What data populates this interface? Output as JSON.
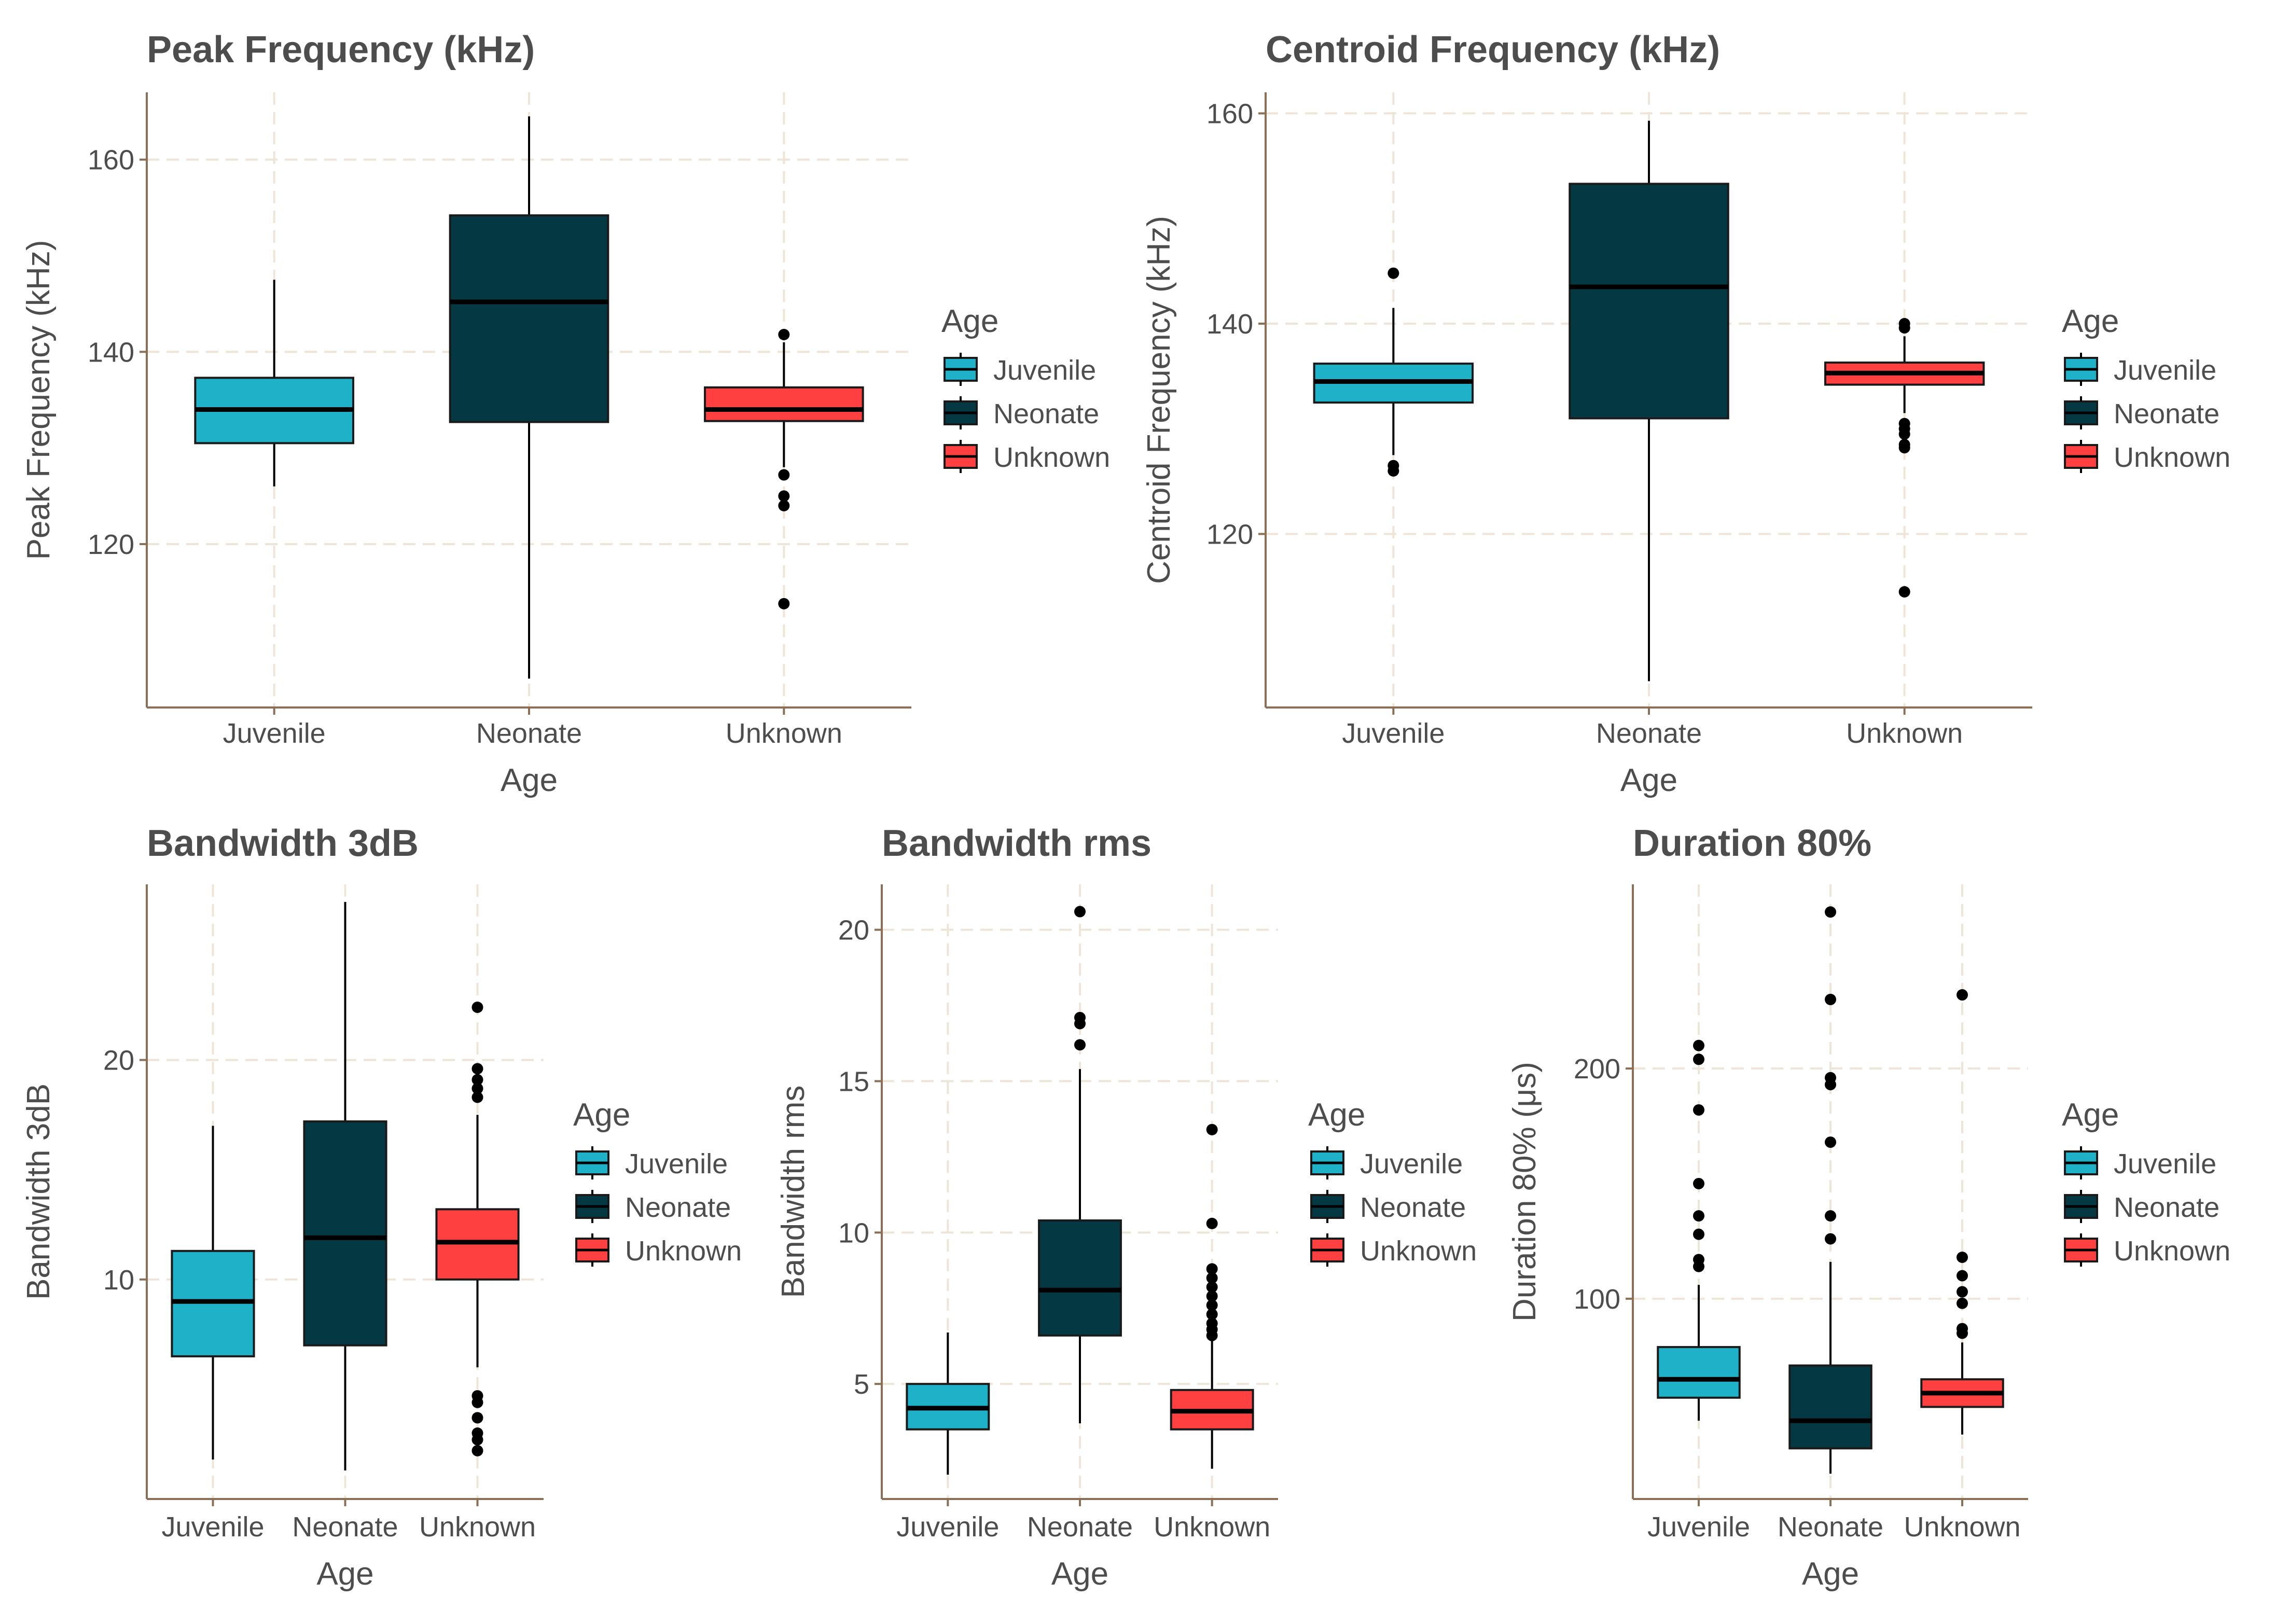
{
  "chart_data": [
    {
      "type": "boxplot",
      "title": "Peak Frequency (kHz)",
      "xlabel": "Age",
      "ylabel": "Peak Frequency (kHz)",
      "ylim": [
        103,
        167
      ],
      "yticks": [
        120,
        140,
        160
      ],
      "categories": [
        "Juvenile",
        "Neonate",
        "Unknown"
      ],
      "boxes": [
        {
          "q1": 130.5,
          "median": 134.0,
          "q3": 137.3,
          "lower": 126.0,
          "upper": 147.5,
          "outliers": []
        },
        {
          "q1": 132.7,
          "median": 145.2,
          "q3": 154.2,
          "lower": 106.0,
          "upper": 164.5,
          "outliers": []
        },
        {
          "q1": 132.8,
          "median": 134.0,
          "q3": 136.3,
          "lower": 128.0,
          "upper": 141.0,
          "outliers": [
            141.8,
            127.2,
            125.0,
            124.0,
            113.8
          ]
        }
      ],
      "legend": {
        "title": "Age",
        "entries": [
          "Juvenile",
          "Neonate",
          "Unknown"
        ]
      }
    },
    {
      "type": "boxplot",
      "title": "Centroid Frequency (kHz)",
      "xlabel": "Age",
      "ylabel": "Centroid Frequency (kHz)",
      "ylim": [
        103.5,
        162
      ],
      "yticks": [
        120,
        140,
        160
      ],
      "categories": [
        "Juvenile",
        "Neonate",
        "Unknown"
      ],
      "boxes": [
        {
          "q1": 132.5,
          "median": 134.5,
          "q3": 136.2,
          "lower": 127.5,
          "upper": 141.5,
          "outliers": [
            144.8,
            126.5,
            126.0
          ]
        },
        {
          "q1": 131.0,
          "median": 143.5,
          "q3": 153.3,
          "lower": 106.0,
          "upper": 159.3,
          "outliers": []
        },
        {
          "q1": 134.2,
          "median": 135.3,
          "q3": 136.3,
          "lower": 131.5,
          "upper": 138.8,
          "outliers": [
            140.0,
            139.6,
            130.5,
            130.0,
            129.5,
            128.5,
            128.2,
            114.5
          ]
        }
      ],
      "legend": {
        "title": "Age",
        "entries": [
          "Juvenile",
          "Neonate",
          "Unknown"
        ]
      }
    },
    {
      "type": "boxplot",
      "title": "Bandwidth 3dB",
      "xlabel": "Age",
      "ylabel": "Bandwidth 3dB",
      "ylim": [
        0,
        28
      ],
      "yticks": [
        10,
        20
      ],
      "categories": [
        "Juvenile",
        "Neonate",
        "Unknown"
      ],
      "boxes": [
        {
          "q1": 6.5,
          "median": 9.0,
          "q3": 11.3,
          "lower": 1.8,
          "upper": 17.0,
          "outliers": []
        },
        {
          "q1": 7.0,
          "median": 11.9,
          "q3": 17.2,
          "lower": 1.3,
          "upper": 27.2,
          "outliers": []
        },
        {
          "q1": 10.0,
          "median": 11.7,
          "q3": 13.2,
          "lower": 6.0,
          "upper": 17.5,
          "outliers": [
            22.4,
            19.6,
            19.1,
            18.7,
            18.3,
            4.7,
            4.4,
            3.7,
            3.0,
            2.7,
            2.2
          ]
        }
      ],
      "legend": {
        "title": "Age",
        "entries": [
          "Juvenile",
          "Neonate",
          "Unknown"
        ]
      }
    },
    {
      "type": "boxplot",
      "title": "Bandwidth rms",
      "xlabel": "Age",
      "ylabel": "Bandwidth rms",
      "ylim": [
        1.2,
        21.5
      ],
      "yticks": [
        5,
        10,
        15,
        20
      ],
      "categories": [
        "Juvenile",
        "Neonate",
        "Unknown"
      ],
      "boxes": [
        {
          "q1": 3.5,
          "median": 4.2,
          "q3": 5.0,
          "lower": 2.0,
          "upper": 6.7,
          "outliers": []
        },
        {
          "q1": 6.6,
          "median": 8.1,
          "q3": 10.4,
          "lower": 3.7,
          "upper": 15.4,
          "outliers": [
            20.6,
            17.1,
            16.9,
            16.2
          ]
        },
        {
          "q1": 3.5,
          "median": 4.1,
          "q3": 4.8,
          "lower": 2.2,
          "upper": 6.5,
          "outliers": [
            13.4,
            10.3,
            8.8,
            8.5,
            8.2,
            7.9,
            7.6,
            7.3,
            7.0,
            6.8,
            6.6
          ]
        }
      ],
      "legend": {
        "title": "Age",
        "entries": [
          "Juvenile",
          "Neonate",
          "Unknown"
        ]
      }
    },
    {
      "type": "boxplot",
      "title": "Duration 80%",
      "xlabel": "Age",
      "ylabel": "Duration 80% (μs)",
      "ylim": [
        13,
        280
      ],
      "yticks": [
        100,
        200
      ],
      "categories": [
        "Juvenile",
        "Neonate",
        "Unknown"
      ],
      "boxes": [
        {
          "q1": 57,
          "median": 65,
          "q3": 79,
          "lower": 47,
          "upper": 106,
          "outliers": [
            210,
            204,
            182,
            150,
            136,
            128,
            117,
            114
          ]
        },
        {
          "q1": 35,
          "median": 47,
          "q3": 71,
          "lower": 24,
          "upper": 116,
          "outliers": [
            268,
            230,
            196,
            193,
            168,
            136,
            126
          ]
        },
        {
          "q1": 53,
          "median": 59,
          "q3": 65,
          "lower": 41,
          "upper": 81,
          "outliers": [
            232,
            118,
            110,
            103,
            98,
            87,
            85
          ]
        }
      ],
      "legend": {
        "title": "Age",
        "entries": [
          "Juvenile",
          "Neonate",
          "Unknown"
        ]
      }
    }
  ],
  "colors": {
    "Juvenile": "#1fb1c8",
    "Neonate": "#043842",
    "Unknown": "#ff4040"
  }
}
